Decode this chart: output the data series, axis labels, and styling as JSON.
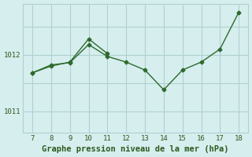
{
  "title": "Graphe pression niveau de la mer (hPa)",
  "xlabel_ticks": [
    7,
    8,
    9,
    10,
    11,
    12,
    13,
    14,
    15,
    16,
    17,
    18
  ],
  "ytick_positions": [
    1011,
    1011.5,
    1012,
    1012.5
  ],
  "ytick_labels": [
    "1011",
    "",
    "1012",
    ""
  ],
  "ylim": [
    1010.62,
    1012.9
  ],
  "xlim": [
    6.5,
    18.5
  ],
  "line1": {
    "x": [
      7,
      8,
      9,
      10,
      11,
      12,
      13,
      14,
      15,
      16,
      17,
      18
    ],
    "y": [
      1011.68,
      1011.82,
      1011.86,
      1012.18,
      1011.97,
      1011.87,
      1011.73,
      1011.38,
      1011.73,
      1011.87,
      1012.1,
      1012.75
    ],
    "color": "#2d6a2d",
    "linewidth": 1.0,
    "marker": "D",
    "markersize": 2.5
  },
  "line2": {
    "x": [
      7,
      8,
      9,
      10,
      11
    ],
    "y": [
      1011.68,
      1011.8,
      1011.87,
      1012.28,
      1012.02
    ],
    "color": "#2d6a2d",
    "linewidth": 1.0,
    "marker": "D",
    "markersize": 2.5
  },
  "bg_color": "#d6eeee",
  "grid_color": "#b0d0d0",
  "label_color": "#2d5a1e",
  "font_name": "monospace",
  "title_fontsize": 7.5,
  "tick_fontsize": 6.5
}
